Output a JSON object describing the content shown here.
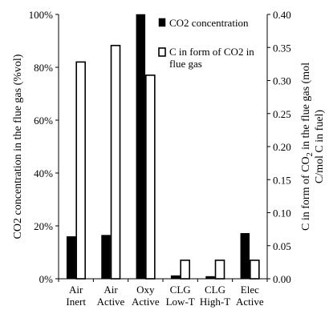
{
  "chart_data": {
    "type": "bar",
    "categories": [
      [
        "Air",
        "Inert"
      ],
      [
        "Air",
        "Active"
      ],
      [
        "Oxy",
        "Active"
      ],
      [
        "CLG",
        "Low-T"
      ],
      [
        "CLG",
        "High-T"
      ],
      [
        "Elec",
        "Active"
      ]
    ],
    "series": [
      {
        "name": "CO2 concentration",
        "axis": "left",
        "fill": "#000000",
        "values": [
          16,
          16.5,
          100,
          1.2,
          0.9,
          17.2
        ]
      },
      {
        "name": "C in form of CO2 in flue gas",
        "axis": "right",
        "fill": "#ffffff",
        "values": [
          0.328,
          0.353,
          0.308,
          0.028,
          0.028,
          0.028
        ]
      }
    ],
    "y_left": {
      "label": "CO2  concentration in the flue gas (%vol)",
      "ticks": [
        "0%",
        "20%",
        "40%",
        "60%",
        "80%",
        "100%"
      ],
      "ylim": [
        0,
        100
      ]
    },
    "y_right": {
      "label_line1_parts": [
        "C  in  form of CO",
        "2",
        "  in the flue gas (mol"
      ],
      "label_line2": "C/mol  C in fuel)",
      "ticks": [
        "0.00",
        "0.05",
        "0.10",
        "0.15",
        "0.20",
        "0.25",
        "0.30",
        "0.35",
        "0.40"
      ],
      "ylim": [
        0,
        0.4
      ]
    },
    "legend": {
      "placement": "top-right",
      "entries": [
        {
          "lines": [
            "CO2 concentration"
          ]
        },
        {
          "lines": [
            "C in form of CO2 in",
            "flue gas"
          ]
        }
      ]
    },
    "grid": false
  }
}
